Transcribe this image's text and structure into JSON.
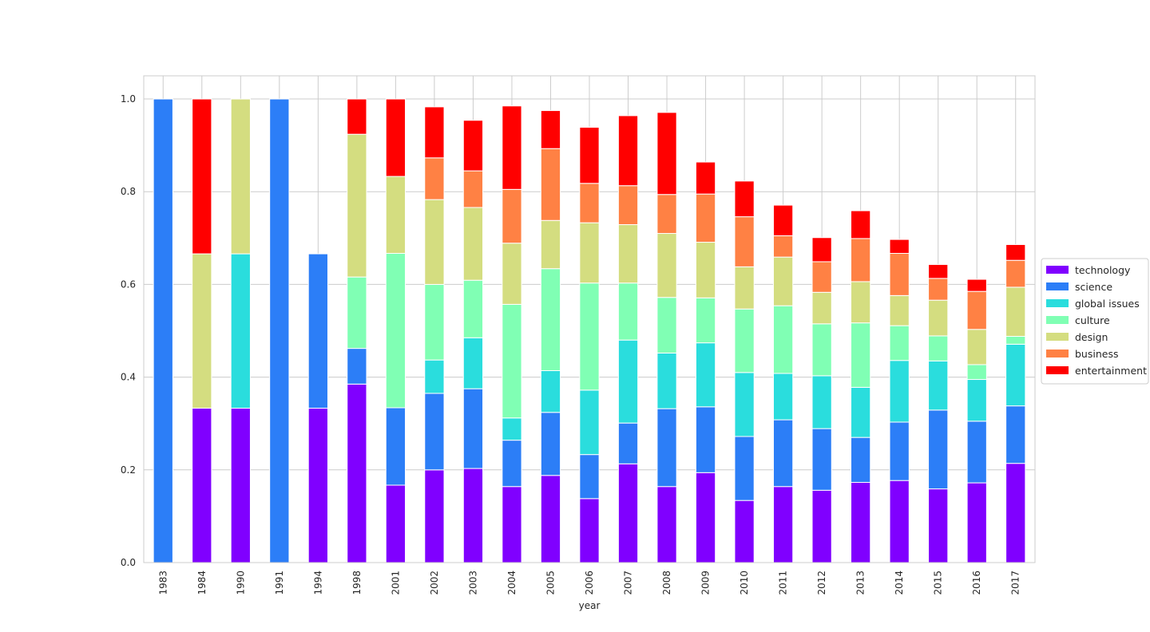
{
  "chart_data": {
    "type": "bar",
    "stacked": true,
    "title": "",
    "xlabel": "year",
    "ylabel": "",
    "ylim": [
      0,
      1.05
    ],
    "yticks": [
      "0.0",
      "0.2",
      "0.4",
      "0.6",
      "0.8",
      "1.0"
    ],
    "grid": true,
    "legend_position": "center-right",
    "categories": [
      "1983",
      "1984",
      "1990",
      "1991",
      "1994",
      "1998",
      "2001",
      "2002",
      "2003",
      "2004",
      "2005",
      "2006",
      "2007",
      "2008",
      "2009",
      "2010",
      "2011",
      "2012",
      "2013",
      "2014",
      "2015",
      "2016",
      "2017"
    ],
    "series": [
      {
        "name": "technology",
        "color": "#8000ff",
        "values": [
          0,
          0.333,
          0.333,
          0,
          0.333,
          0.385,
          0.167,
          0.2,
          0.203,
          0.164,
          0.188,
          0.138,
          0.213,
          0.164,
          0.194,
          0.134,
          0.164,
          0.156,
          0.173,
          0.177,
          0.159,
          0.172,
          0.214
        ]
      },
      {
        "name": "science",
        "color": "#2c7ef7",
        "values": [
          1.0,
          0,
          0,
          1.0,
          0.333,
          0.077,
          0.167,
          0.165,
          0.172,
          0.1,
          0.136,
          0.095,
          0.088,
          0.168,
          0.142,
          0.138,
          0.144,
          0.133,
          0.097,
          0.126,
          0.17,
          0.133,
          0.124
        ]
      },
      {
        "name": "global issues",
        "color": "#2adddd",
        "values": [
          0,
          0,
          0.333,
          0,
          0,
          0,
          0,
          0.072,
          0.11,
          0.048,
          0.09,
          0.139,
          0.179,
          0.12,
          0.138,
          0.138,
          0.1,
          0.114,
          0.108,
          0.133,
          0.106,
          0.09,
          0.133
        ]
      },
      {
        "name": "culture",
        "color": "#80ffb4",
        "values": [
          0,
          0,
          0,
          0,
          0,
          0.154,
          0.333,
          0.163,
          0.124,
          0.245,
          0.22,
          0.231,
          0.123,
          0.12,
          0.097,
          0.137,
          0.146,
          0.112,
          0.139,
          0.075,
          0.054,
          0.032,
          0.017
        ]
      },
      {
        "name": "design",
        "color": "#d4dd80",
        "values": [
          0,
          0.333,
          0.334,
          0,
          0,
          0.308,
          0.166,
          0.183,
          0.157,
          0.132,
          0.104,
          0.13,
          0.126,
          0.138,
          0.12,
          0.091,
          0.105,
          0.068,
          0.089,
          0.065,
          0.077,
          0.076,
          0.106
        ]
      },
      {
        "name": "business",
        "color": "#ff8144",
        "values": [
          0,
          0,
          0,
          0,
          0,
          0,
          0,
          0.09,
          0.079,
          0.116,
          0.155,
          0.085,
          0.084,
          0.084,
          0.104,
          0.108,
          0.046,
          0.066,
          0.093,
          0.091,
          0.047,
          0.082,
          0.058
        ]
      },
      {
        "name": "entertainment",
        "color": "#ff0000",
        "values": [
          0,
          0.334,
          0,
          0,
          0,
          0.076,
          0.167,
          0.11,
          0.109,
          0.18,
          0.082,
          0.121,
          0.151,
          0.177,
          0.069,
          0.077,
          0.066,
          0.052,
          0.06,
          0.03,
          0.03,
          0.026,
          0.034
        ]
      }
    ]
  }
}
